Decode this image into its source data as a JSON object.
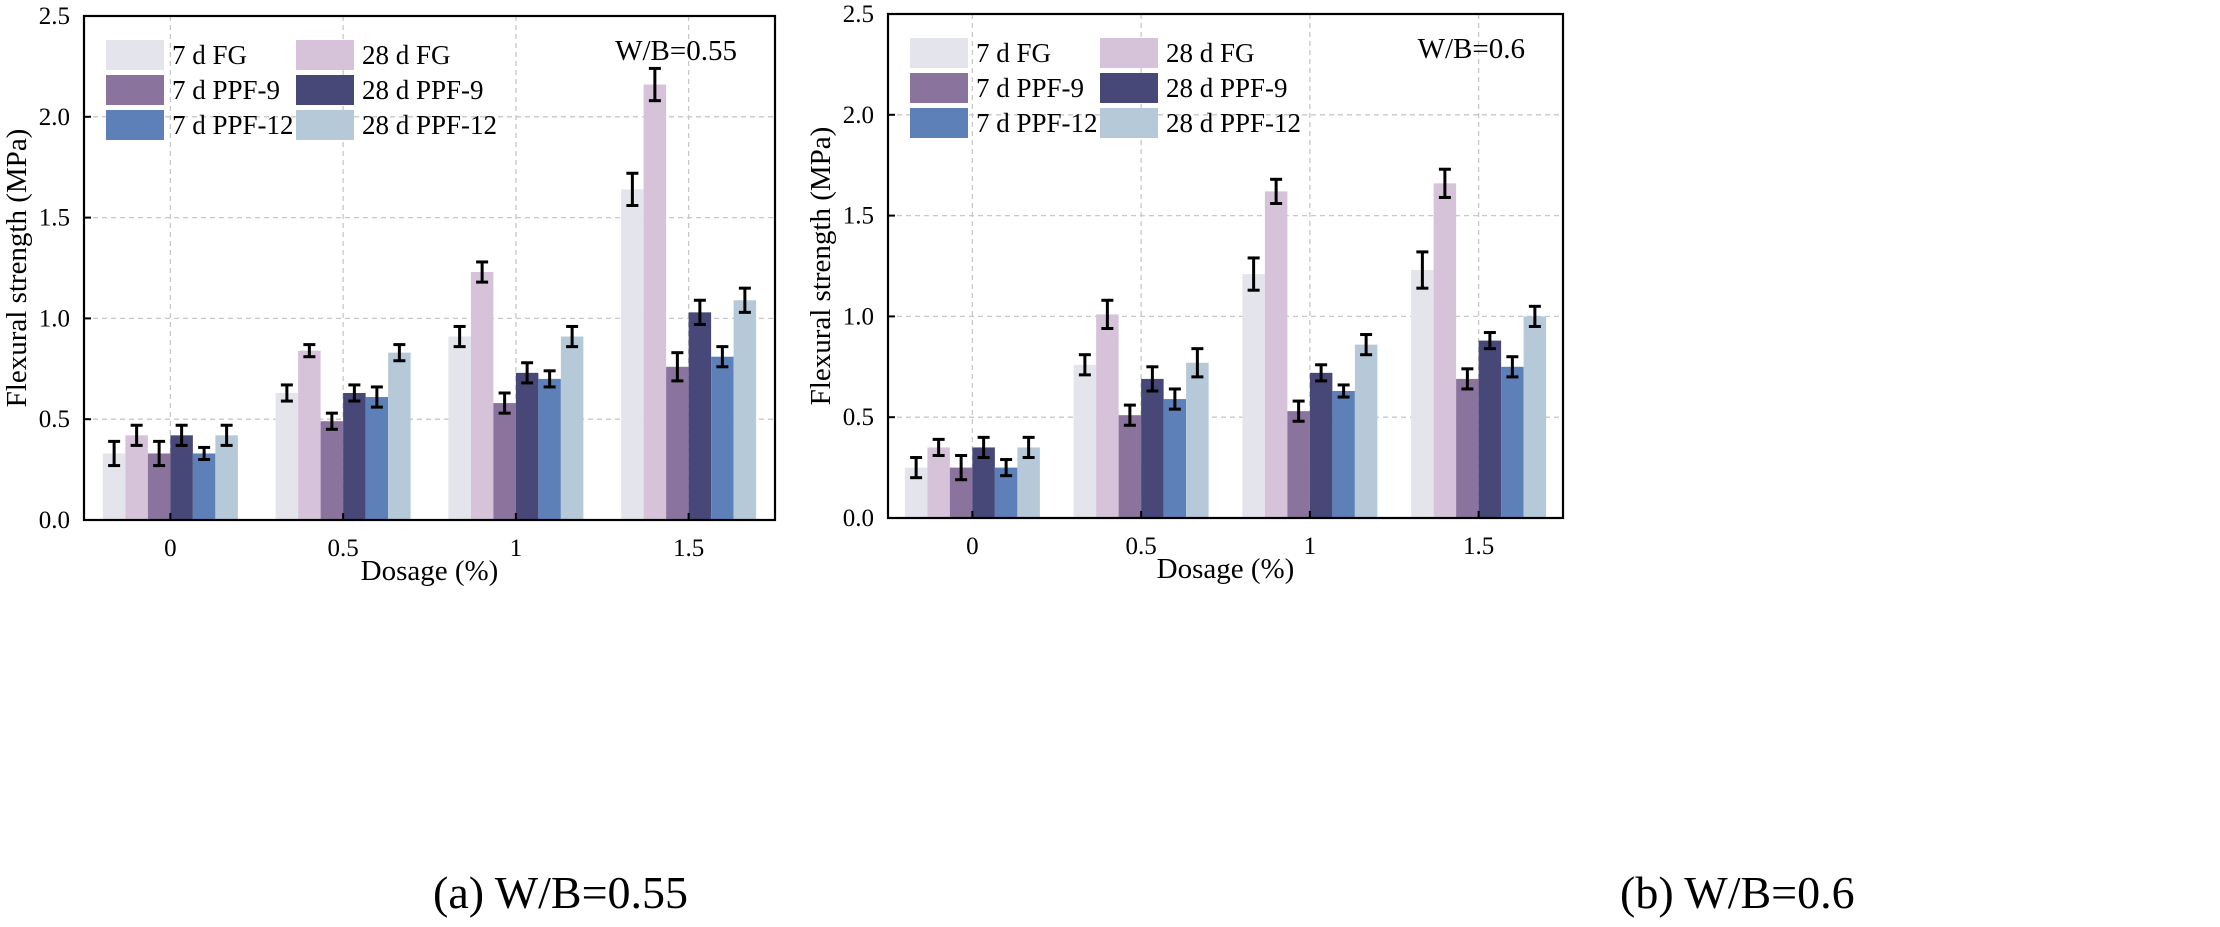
{
  "colors": {
    "7d_FG": "#e4e4ec",
    "28d_FG": "#d6c2d9",
    "7d_PPF9": "#8a739c",
    "28d_PPF9": "#474877",
    "7d_PPF12": "#5d80b8",
    "28d_PPF12": "#b5c9d8",
    "grid": "#c8c8c8",
    "axis": "#000000"
  },
  "captions": [
    "(a) W/B=0.55",
    "(b) W/B=0.6"
  ],
  "chart_data": [
    {
      "type": "bar",
      "annotation": "W/B=0.55",
      "xlabel": "Dosage (%)",
      "ylabel": "Flexural strength (MPa)",
      "ylim": [
        0,
        2.5
      ],
      "yticks": [
        "0.0",
        "0.5",
        "1.0",
        "1.5",
        "2.0",
        "2.5"
      ],
      "categories": [
        "0",
        "0.5",
        "1",
        "1.5"
      ],
      "grid": true,
      "legend_position": "top-left",
      "series": [
        {
          "name": "7 d FG",
          "color_key": "7d_FG",
          "values": [
            0.33,
            0.63,
            0.91,
            1.64
          ],
          "errors": [
            0.06,
            0.04,
            0.05,
            0.08
          ]
        },
        {
          "name": "28 d FG",
          "color_key": "28d_FG",
          "values": [
            0.42,
            0.84,
            1.23,
            2.16
          ],
          "errors": [
            0.05,
            0.03,
            0.05,
            0.08
          ]
        },
        {
          "name": "7 d PPF-9",
          "color_key": "7d_PPF9",
          "values": [
            0.33,
            0.49,
            0.58,
            0.76
          ],
          "errors": [
            0.06,
            0.04,
            0.05,
            0.07
          ]
        },
        {
          "name": "28 d PPF-9",
          "color_key": "28d_PPF9",
          "values": [
            0.42,
            0.63,
            0.73,
            1.03
          ],
          "errors": [
            0.05,
            0.04,
            0.05,
            0.06
          ]
        },
        {
          "name": "7 d PPF-12",
          "color_key": "7d_PPF12",
          "values": [
            0.33,
            0.61,
            0.7,
            0.81
          ],
          "errors": [
            0.03,
            0.05,
            0.04,
            0.05
          ]
        },
        {
          "name": "28 d PPF-12",
          "color_key": "28d_PPF12",
          "values": [
            0.42,
            0.83,
            0.91,
            1.09
          ],
          "errors": [
            0.05,
            0.04,
            0.05,
            0.06
          ]
        }
      ]
    },
    {
      "type": "bar",
      "annotation": "W/B=0.6",
      "xlabel": "Dosage (%)",
      "ylabel": "Flexural strength (MPa)",
      "ylim": [
        0,
        2.5
      ],
      "yticks": [
        "0.0",
        "0.5",
        "1.0",
        "1.5",
        "2.0",
        "2.5"
      ],
      "categories": [
        "0",
        "0.5",
        "1",
        "1.5"
      ],
      "grid": true,
      "legend_position": "top-left",
      "series": [
        {
          "name": "7 d FG",
          "color_key": "7d_FG",
          "values": [
            0.25,
            0.76,
            1.21,
            1.23
          ],
          "errors": [
            0.05,
            0.05,
            0.08,
            0.09
          ]
        },
        {
          "name": "28 d FG",
          "color_key": "28d_FG",
          "values": [
            0.35,
            1.01,
            1.62,
            1.66
          ],
          "errors": [
            0.04,
            0.07,
            0.06,
            0.07
          ]
        },
        {
          "name": "7 d PPF-9",
          "color_key": "7d_PPF9",
          "values": [
            0.25,
            0.51,
            0.53,
            0.69
          ],
          "errors": [
            0.06,
            0.05,
            0.05,
            0.05
          ]
        },
        {
          "name": "28 d PPF-9",
          "color_key": "28d_PPF9",
          "values": [
            0.35,
            0.69,
            0.72,
            0.88
          ],
          "errors": [
            0.05,
            0.06,
            0.04,
            0.04
          ]
        },
        {
          "name": "7 d PPF-12",
          "color_key": "7d_PPF12",
          "values": [
            0.25,
            0.59,
            0.63,
            0.75
          ],
          "errors": [
            0.04,
            0.05,
            0.03,
            0.05
          ]
        },
        {
          "name": "28 d PPF-12",
          "color_key": "28d_PPF12",
          "values": [
            0.35,
            0.77,
            0.86,
            1.0
          ],
          "errors": [
            0.05,
            0.07,
            0.05,
            0.05
          ]
        }
      ]
    }
  ]
}
